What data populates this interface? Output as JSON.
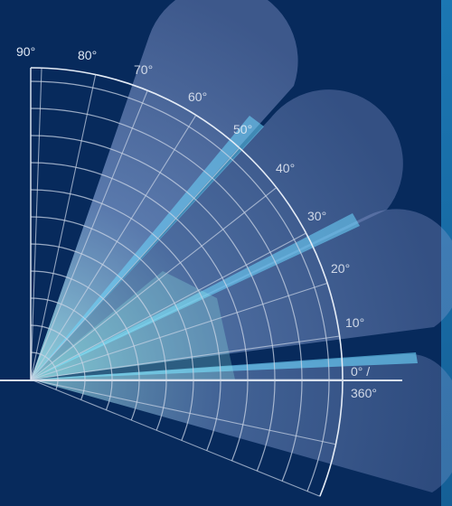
{
  "diagram": {
    "type": "polar-quadrant-beam-pattern",
    "angle_labels": [
      "90°",
      "80°",
      "70°",
      "60°",
      "50°",
      "40°",
      "30°",
      "20°",
      "10°",
      "0° /",
      "360°"
    ],
    "beam_center_angles_deg": [
      0,
      22,
      45,
      68
    ],
    "colors": {
      "background": "#072a5c",
      "grid": "#c9d4e6",
      "beam_core": "#6fd8ff",
      "beam_glow": "#7fe3f0",
      "edge_strip": "#1a6ea8"
    }
  }
}
